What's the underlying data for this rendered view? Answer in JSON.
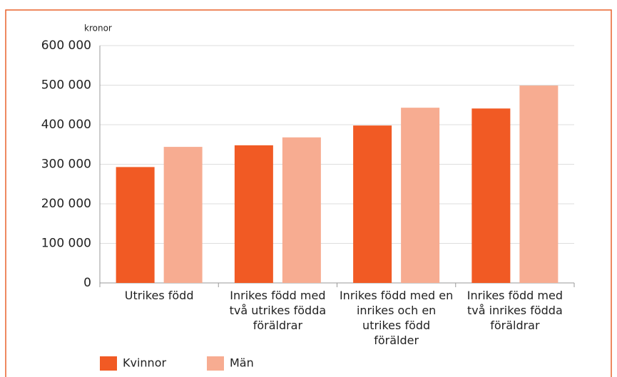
{
  "chart_data": {
    "type": "bar",
    "y_label": "kronor",
    "categories": [
      "Utrikes född",
      "Inrikes född med två utrikes födda föräldrar",
      "Inrikes född med en inrikes och en utrikes född förälder",
      "Inrikes född med två inrikes födda föräldrar"
    ],
    "series": [
      {
        "name": "Kvinnor",
        "color": "#f15a24",
        "values": [
          293000,
          348000,
          398000,
          441000
        ]
      },
      {
        "name": "Män",
        "color": "#f7ac91",
        "values": [
          344000,
          368000,
          443000,
          499000
        ]
      }
    ],
    "ylim": [
      0,
      600000
    ],
    "yticks": [
      0,
      {
        "value": 100000,
        "label": "100 000"
      },
      {
        "value": 200000,
        "label": "200 000"
      },
      {
        "value": 300000,
        "label": "300 000"
      },
      {
        "value": 400000,
        "label": "400 000"
      },
      {
        "value": 500000,
        "label": "500 000"
      },
      {
        "value": 600000,
        "label": "600 000"
      }
    ],
    "grid": true
  }
}
